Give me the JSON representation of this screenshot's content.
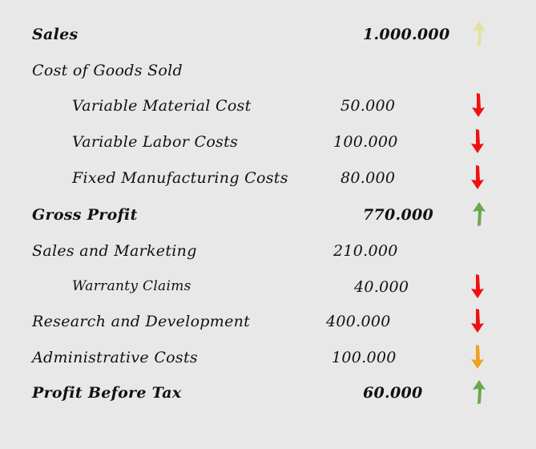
{
  "rows": [
    {
      "label": "Sales",
      "value": "1.000.000",
      "level": 0,
      "bold": true,
      "arrow": "up",
      "color": "#e6e0a0"
    },
    {
      "label": "Cost of Goods Sold",
      "value": "",
      "level": 0,
      "bold": false,
      "arrow": "",
      "color": ""
    },
    {
      "label": "Variable Material Cost",
      "value": "50.000",
      "level": 1,
      "bold": false,
      "arrow": "down",
      "color": "#ee1111"
    },
    {
      "label": "Variable Labor Costs",
      "value": "100.000",
      "level": 1,
      "bold": false,
      "arrow": "down",
      "color": "#ee1111"
    },
    {
      "label": "Fixed Manufacturing Costs",
      "value": "80.000",
      "level": 1,
      "bold": false,
      "arrow": "down",
      "color": "#ee1111"
    },
    {
      "label": "Gross Profit",
      "value": "770.000",
      "level": 0,
      "bold": true,
      "arrow": "up",
      "color": "#6aa84f"
    },
    {
      "label": "Sales and Marketing",
      "value": "210.000",
      "level": 0,
      "bold": false,
      "arrow": "",
      "color": ""
    },
    {
      "label": "Warranty Claims",
      "value": "40.000",
      "level": 1,
      "bold": false,
      "arrow": "down",
      "color": "#ee1111"
    },
    {
      "label": "Research and Development",
      "value": "400.000",
      "level": 0,
      "bold": false,
      "arrow": "down",
      "color": "#ee1111"
    },
    {
      "label": "Administrative Costs",
      "value": "100.000",
      "level": 0,
      "bold": false,
      "arrow": "down",
      "color": "#f0a020"
    },
    {
      "label": "Profit Before Tax",
      "value": "60.000",
      "level": 0,
      "bold": true,
      "arrow": "up",
      "color": "#6aa84f"
    }
  ]
}
